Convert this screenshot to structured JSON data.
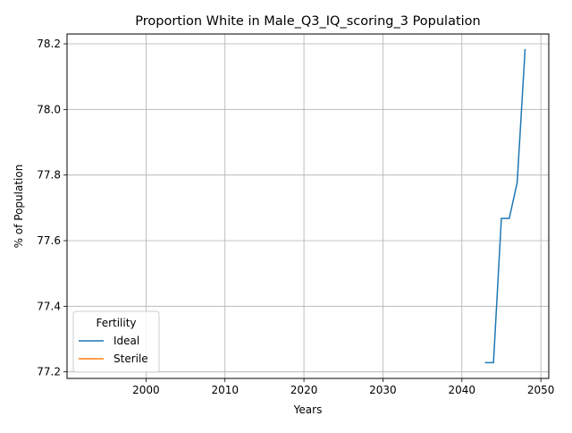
{
  "chart_data": {
    "type": "line",
    "title": "Proportion White in Male_Q3_IQ_scoring_3 Population",
    "xlabel": "Years",
    "ylabel": "% of Population",
    "xlim": [
      1990,
      2051
    ],
    "ylim": [
      77.18,
      78.23
    ],
    "xticks": [
      2000,
      2010,
      2020,
      2030,
      2040,
      2050
    ],
    "yticks": [
      77.2,
      77.4,
      77.6,
      77.8,
      78.0,
      78.2
    ],
    "ytick_labels": [
      "77.2",
      "77.4",
      "77.6",
      "77.8",
      "78.0",
      "78.2"
    ],
    "grid": true,
    "legend": {
      "title": "Fertility",
      "placement": "lower-left"
    },
    "series": [
      {
        "name": "Ideal",
        "color": "#1f77b4",
        "points": [
          {
            "x": 2043,
            "y": 77.228
          },
          {
            "x": 2044,
            "y": 77.228
          },
          {
            "x": 2045,
            "y": 77.668
          },
          {
            "x": 2046,
            "y": 77.668
          },
          {
            "x": 2047,
            "y": 77.777
          },
          {
            "x": 2048,
            "y": 78.182
          }
        ]
      },
      {
        "name": "Sterile",
        "color": "#ff7f0e",
        "points": []
      }
    ]
  }
}
